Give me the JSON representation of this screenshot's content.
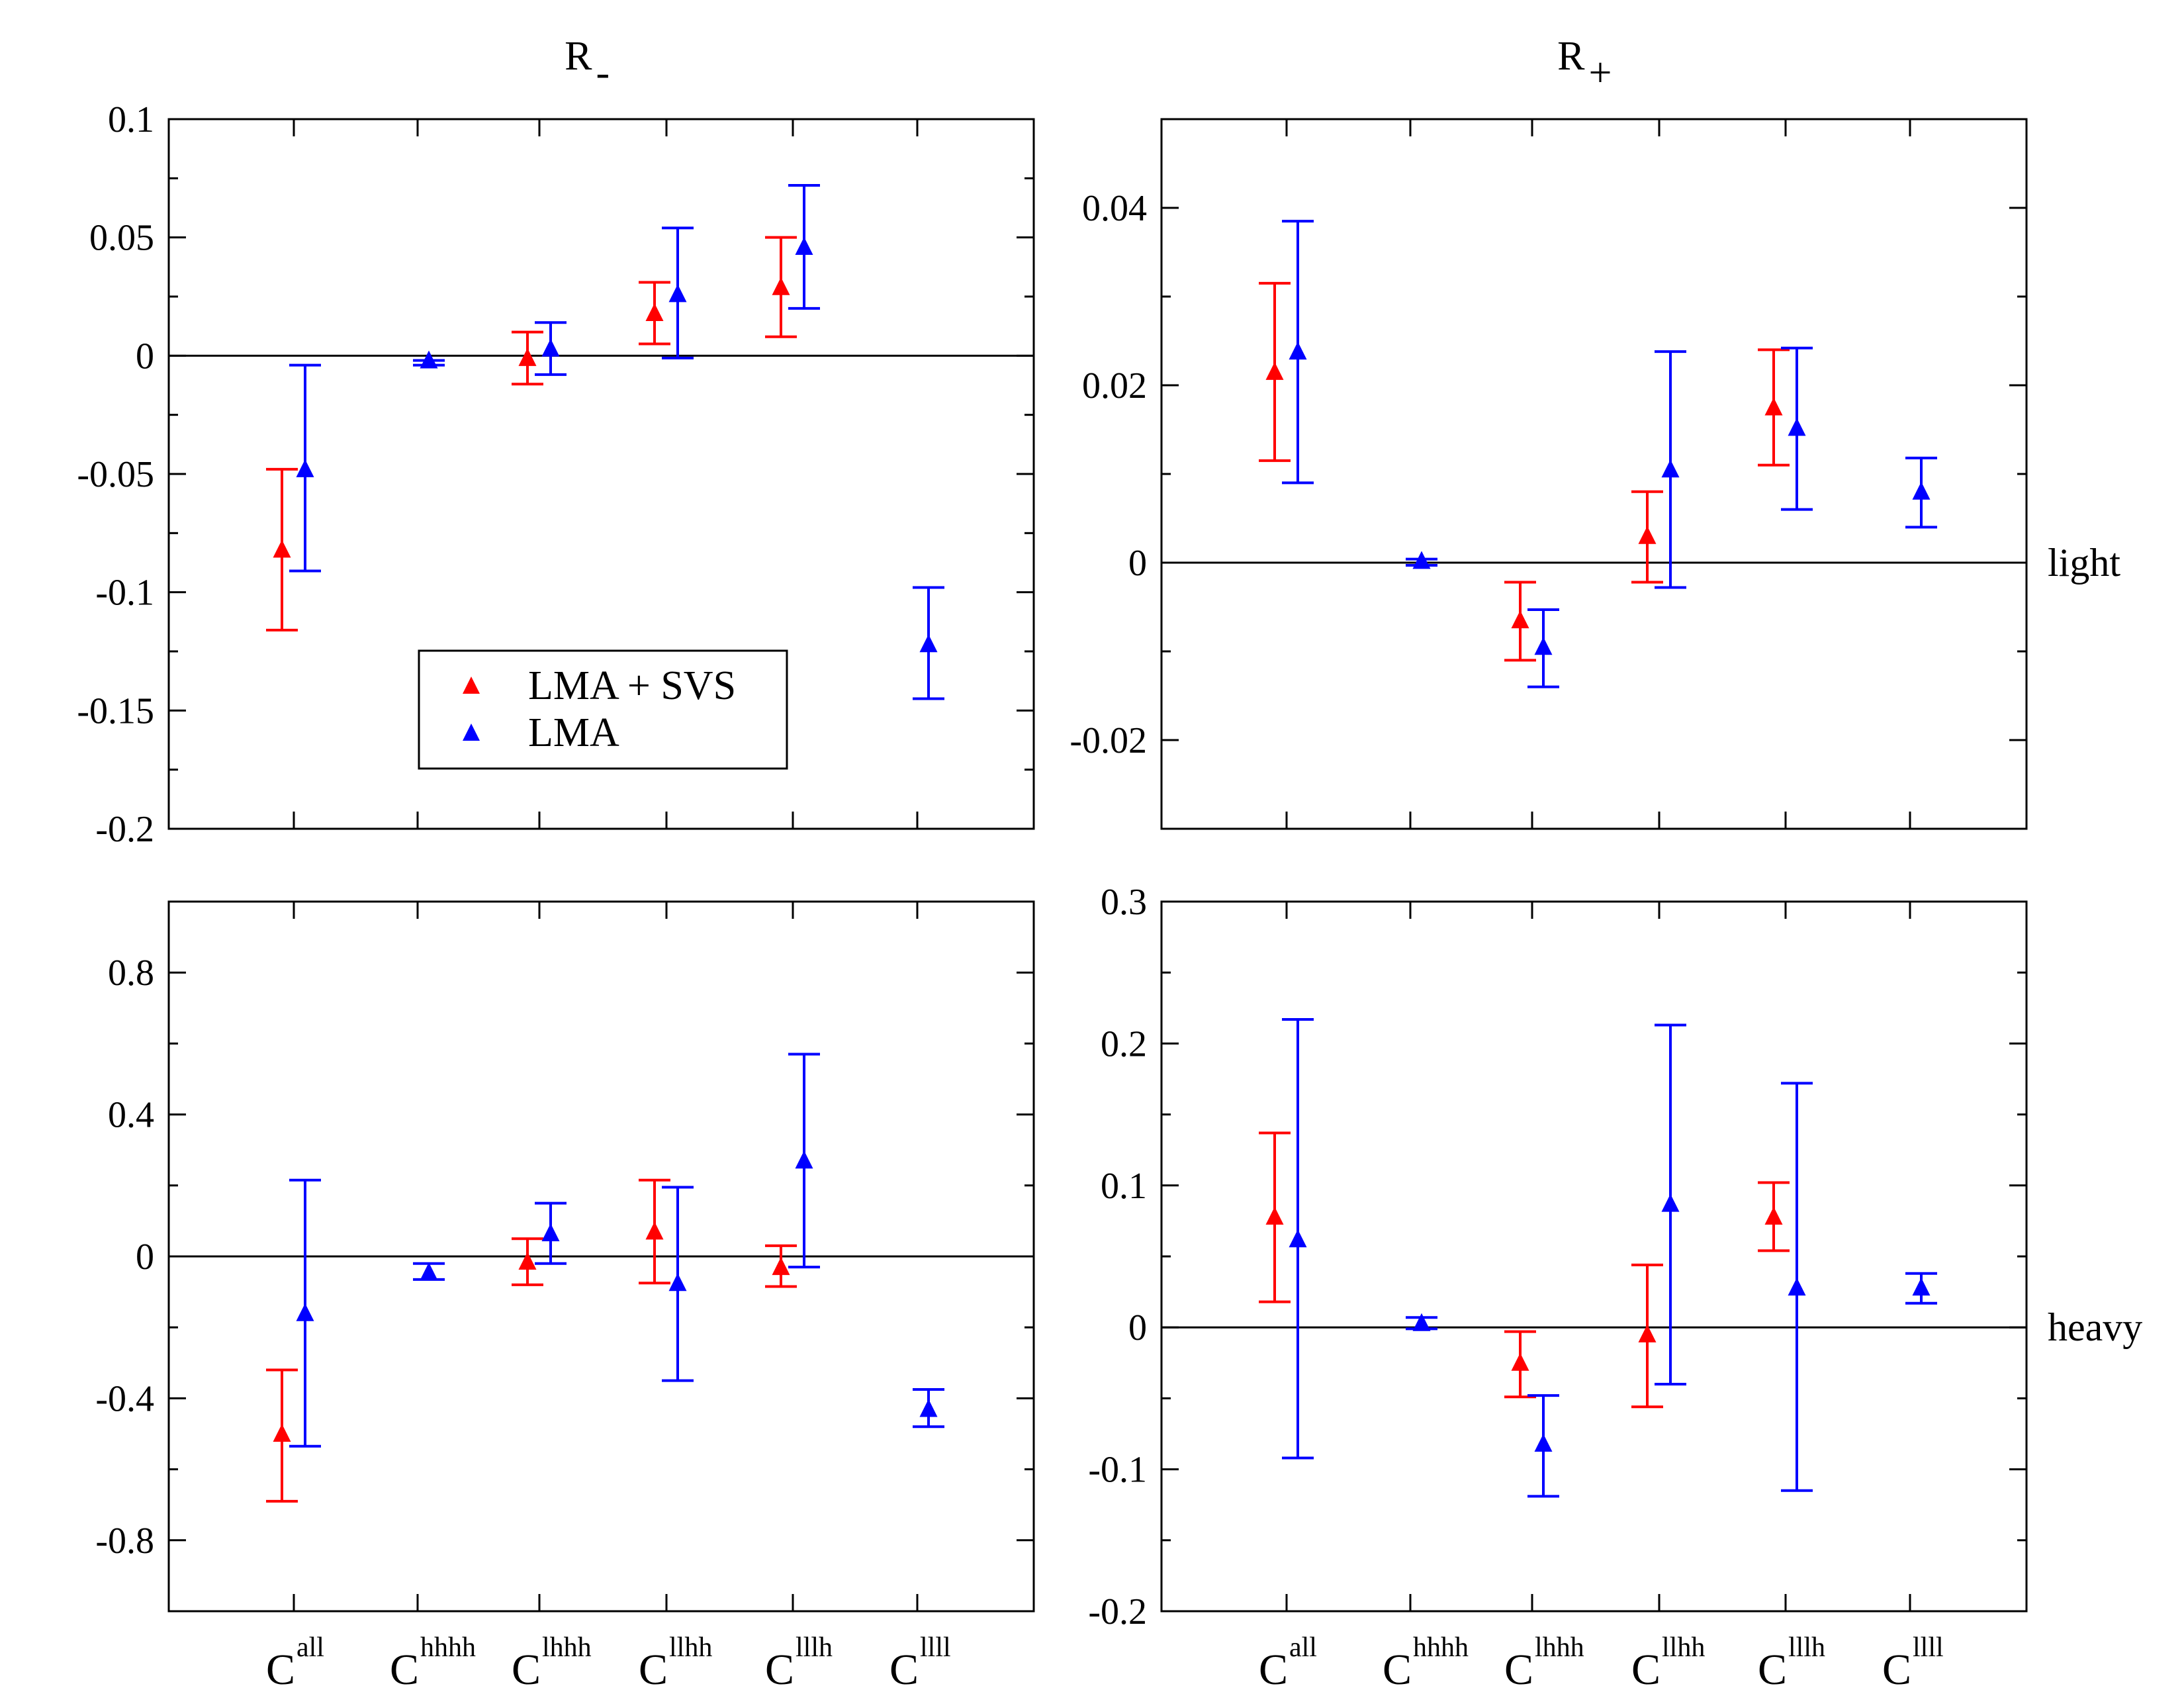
{
  "chart_data": [
    {
      "type": "errorbar",
      "panel": "top-left",
      "title": "R",
      "title_sub": "-",
      "row_label": "",
      "ylim": [
        -0.2,
        0.1
      ],
      "major_ticks": [
        -0.2,
        -0.15,
        -0.1,
        -0.05,
        0,
        0.05,
        0.1
      ],
      "tick_labels": [
        "-0.2",
        "-0.15",
        "-0.1",
        "-0.05",
        "0",
        "0.05",
        "0.1"
      ],
      "minor_step": 0.025,
      "show_x_labels": false,
      "series": [
        {
          "name": "LMA + SVS",
          "color": "#ff0000",
          "points": [
            {
              "x": 1,
              "y": -0.082,
              "lo": -0.116,
              "hi": -0.048
            },
            {
              "x": 3,
              "y": -0.001,
              "lo": -0.012,
              "hi": 0.01
            },
            {
              "x": 4,
              "y": 0.018,
              "lo": 0.005,
              "hi": 0.031
            },
            {
              "x": 5,
              "y": 0.029,
              "lo": 0.008,
              "hi": 0.05
            }
          ]
        },
        {
          "name": "LMA",
          "color": "#0000ff",
          "points": [
            {
              "x": 1,
              "y": -0.048,
              "lo": -0.091,
              "hi": -0.004
            },
            {
              "x": 2,
              "y": -0.002,
              "lo": -0.004,
              "hi": -0.002
            },
            {
              "x": 3,
              "y": 0.003,
              "lo": -0.008,
              "hi": 0.014
            },
            {
              "x": 4,
              "y": 0.026,
              "lo": -0.001,
              "hi": 0.054
            },
            {
              "x": 5,
              "y": 0.046,
              "lo": 0.02,
              "hi": 0.072
            },
            {
              "x": 6,
              "y": -0.122,
              "lo": -0.145,
              "hi": -0.098
            }
          ]
        }
      ]
    },
    {
      "type": "errorbar",
      "panel": "top-right",
      "title": "R",
      "title_sub": "+",
      "row_label": "light",
      "ylim": [
        -0.03,
        0.05
      ],
      "major_ticks": [
        -0.02,
        0,
        0.02,
        0.04
      ],
      "tick_labels": [
        "-0.02",
        "0",
        "0.02",
        "0.04"
      ],
      "minor_step": 0.01,
      "show_x_labels": false,
      "series": [
        {
          "name": "LMA + SVS",
          "color": "#ff0000",
          "points": [
            {
              "x": 1,
              "y": 0.0215,
              "lo": 0.0115,
              "hi": 0.0315
            },
            {
              "x": 3,
              "y": -0.0065,
              "lo": -0.011,
              "hi": -0.0022
            },
            {
              "x": 4,
              "y": 0.003,
              "lo": -0.0022,
              "hi": 0.008
            },
            {
              "x": 5,
              "y": 0.0175,
              "lo": 0.011,
              "hi": 0.024
            }
          ]
        },
        {
          "name": "LMA",
          "color": "#0000ff",
          "points": [
            {
              "x": 1,
              "y": 0.0238,
              "lo": 0.009,
              "hi": 0.0385
            },
            {
              "x": 2,
              "y": 0.0002,
              "lo": -0.0003,
              "hi": 0.0004
            },
            {
              "x": 3,
              "y": -0.0095,
              "lo": -0.014,
              "hi": -0.0053
            },
            {
              "x": 4,
              "y": 0.0105,
              "lo": -0.0028,
              "hi": 0.0238
            },
            {
              "x": 5,
              "y": 0.0152,
              "lo": 0.006,
              "hi": 0.0242
            },
            {
              "x": 6,
              "y": 0.008,
              "lo": 0.004,
              "hi": 0.0118
            }
          ]
        }
      ]
    },
    {
      "type": "errorbar",
      "panel": "bottom-left",
      "title": "",
      "title_sub": "",
      "row_label": "",
      "ylim": [
        -1.0,
        1.0
      ],
      "major_ticks": [
        -0.8,
        -0.4,
        0,
        0.4,
        0.8
      ],
      "tick_labels": [
        "-0.8",
        "-0.4",
        "0",
        "0.4",
        "0.8"
      ],
      "minor_step": 0.2,
      "show_x_labels": true,
      "series": [
        {
          "name": "LMA + SVS",
          "color": "#ff0000",
          "points": [
            {
              "x": 1,
              "y": -0.5,
              "lo": -0.69,
              "hi": -0.32
            },
            {
              "x": 3,
              "y": -0.015,
              "lo": -0.08,
              "hi": 0.05
            },
            {
              "x": 4,
              "y": 0.07,
              "lo": -0.075,
              "hi": 0.215
            },
            {
              "x": 5,
              "y": -0.03,
              "lo": -0.085,
              "hi": 0.03
            }
          ]
        },
        {
          "name": "LMA",
          "color": "#0000ff",
          "points": [
            {
              "x": 1,
              "y": -0.16,
              "lo": -0.535,
              "hi": 0.215
            },
            {
              "x": 2,
              "y": -0.045,
              "lo": -0.065,
              "hi": -0.02
            },
            {
              "x": 3,
              "y": 0.065,
              "lo": -0.02,
              "hi": 0.15
            },
            {
              "x": 4,
              "y": -0.075,
              "lo": -0.35,
              "hi": 0.195
            },
            {
              "x": 5,
              "y": 0.27,
              "lo": -0.03,
              "hi": 0.57
            },
            {
              "x": 6,
              "y": -0.43,
              "lo": -0.48,
              "hi": -0.375
            }
          ]
        }
      ]
    },
    {
      "type": "errorbar",
      "panel": "bottom-right",
      "title": "",
      "title_sub": "",
      "row_label": "heavy",
      "ylim": [
        -0.2,
        0.3
      ],
      "major_ticks": [
        -0.2,
        -0.1,
        0,
        0.1,
        0.2,
        0.3
      ],
      "tick_labels": [
        "-0.2",
        "-0.1",
        "0",
        "0.1",
        "0.2",
        "0.3"
      ],
      "minor_step": 0.05,
      "show_x_labels": true,
      "series": [
        {
          "name": "LMA + SVS",
          "color": "#ff0000",
          "points": [
            {
              "x": 1,
              "y": 0.078,
              "lo": 0.018,
              "hi": 0.137
            },
            {
              "x": 3,
              "y": -0.025,
              "lo": -0.049,
              "hi": -0.003
            },
            {
              "x": 4,
              "y": -0.005,
              "lo": -0.056,
              "hi": 0.044
            },
            {
              "x": 5,
              "y": 0.078,
              "lo": 0.054,
              "hi": 0.102
            }
          ]
        },
        {
          "name": "LMA",
          "color": "#0000ff",
          "points": [
            {
              "x": 1,
              "y": 0.062,
              "lo": -0.092,
              "hi": 0.217
            },
            {
              "x": 2,
              "y": 0.003,
              "lo": -0.001,
              "hi": 0.007
            },
            {
              "x": 3,
              "y": -0.082,
              "lo": -0.119,
              "hi": -0.048
            },
            {
              "x": 4,
              "y": 0.087,
              "lo": -0.04,
              "hi": 0.213
            },
            {
              "x": 5,
              "y": 0.028,
              "lo": -0.115,
              "hi": 0.172
            },
            {
              "x": 6,
              "y": 0.028,
              "lo": 0.017,
              "hi": 0.038
            }
          ]
        }
      ]
    }
  ],
  "categories": [
    {
      "base": "C",
      "sup": "all"
    },
    {
      "base": "C",
      "sup": "hhhh"
    },
    {
      "base": "C",
      "sup": "lhhh"
    },
    {
      "base": "C",
      "sup": "llhh"
    },
    {
      "base": "C",
      "sup": "lllh"
    },
    {
      "base": "C",
      "sup": "llll"
    }
  ],
  "legend": {
    "location": "lower-center of top-left panel",
    "entries": [
      {
        "label": "LMA + SVS",
        "color": "#ff0000"
      },
      {
        "label": "LMA",
        "color": "#0000ff"
      }
    ]
  }
}
